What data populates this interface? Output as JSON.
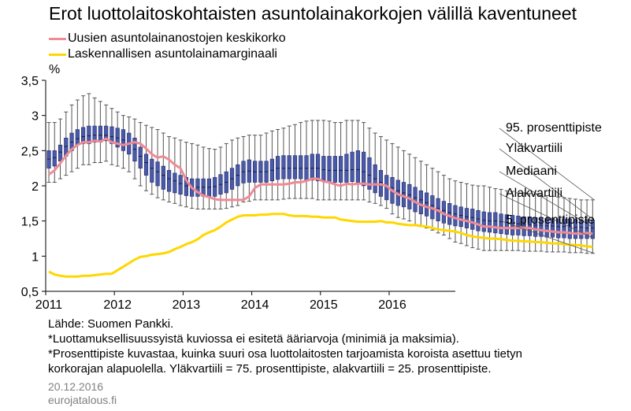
{
  "title": "Erot luottolaitoskohtaisten asuntolainakorkojen välillä kaventuneet",
  "unit_label": "%",
  "colors": {
    "median_line": "#f08a94",
    "margin_line": "#ffd700",
    "box": "#4a5aa8",
    "box_border": "#1f2a6b",
    "whisker": "#555555"
  },
  "notes": {
    "source": "Lähde: Suomen Pankki.",
    "note1": "*Luottamuksellisuussyistä kuviossa ei esitetä ääriarvoja (minimiä ja maksimia).",
    "note2": "*Prosenttipiste kuvastaa, kuinka suuri osa luottolaitosten tarjoamista koroista asettuu tietyn",
    "note3": "korkorajan alapuolella. Yläkvartiili = 75. prosenttipiste, alakvartiili = 25. prosenttipiste."
  },
  "date": "20.12.2016",
  "site": "eurojatalous.fi",
  "chart_data": {
    "type": "box_line",
    "x_ticks": [
      "2011",
      "2012",
      "2013",
      "2014",
      "2015",
      "2016"
    ],
    "y_ticks": [
      "0,5",
      "1",
      "1,5",
      "2",
      "2,5",
      "3",
      "3,5"
    ],
    "ylim": [
      0.5,
      3.5
    ],
    "x_start": "2011-01",
    "annotations": [
      "95. prosenttipiste",
      "Yläkvartiili",
      "Mediaani",
      "Alakvartiili",
      "5. prosenttipiste"
    ],
    "series": [
      {
        "name": "Uusien asuntolainanostojen keskikorko",
        "values": [
          2.16,
          2.22,
          2.32,
          2.43,
          2.52,
          2.58,
          2.62,
          2.62,
          2.64,
          2.63,
          2.67,
          2.62,
          2.6,
          2.58,
          2.6,
          2.62,
          2.6,
          2.53,
          2.45,
          2.4,
          2.42,
          2.37,
          2.3,
          2.25,
          2.08,
          1.97,
          1.91,
          1.86,
          1.84,
          1.81,
          1.8,
          1.8,
          1.8,
          1.8,
          1.8,
          1.85,
          1.97,
          2.02,
          2.02,
          2.02,
          2.02,
          2.02,
          2.03,
          2.05,
          2.05,
          2.07,
          2.1,
          2.1,
          2.06,
          2.05,
          2.02,
          2.0,
          2.03,
          2.02,
          2.03,
          2.03,
          2.02,
          2.02,
          2.02,
          2.0,
          1.93,
          1.88,
          1.85,
          1.82,
          1.77,
          1.73,
          1.7,
          1.68,
          1.65,
          1.6,
          1.57,
          1.54,
          1.52,
          1.5,
          1.48,
          1.45,
          1.42,
          1.42,
          1.41,
          1.4,
          1.4,
          1.4,
          1.4,
          1.4,
          1.4,
          1.38,
          1.37,
          1.36,
          1.35,
          1.34,
          1.34,
          1.33,
          1.32,
          1.32,
          1.33,
          1.32
        ]
      },
      {
        "name": "Laskennallisen asuntolainamarginaali",
        "values": [
          0.78,
          0.74,
          0.72,
          0.71,
          0.71,
          0.71,
          0.72,
          0.72,
          0.73,
          0.74,
          0.75,
          0.75,
          0.8,
          0.85,
          0.9,
          0.95,
          0.99,
          1.0,
          1.02,
          1.03,
          1.04,
          1.06,
          1.1,
          1.13,
          1.17,
          1.2,
          1.24,
          1.3,
          1.34,
          1.37,
          1.42,
          1.48,
          1.52,
          1.56,
          1.58,
          1.58,
          1.58,
          1.59,
          1.59,
          1.6,
          1.6,
          1.6,
          1.58,
          1.57,
          1.57,
          1.57,
          1.56,
          1.56,
          1.55,
          1.55,
          1.55,
          1.52,
          1.51,
          1.5,
          1.49,
          1.49,
          1.49,
          1.49,
          1.5,
          1.48,
          1.48,
          1.46,
          1.45,
          1.44,
          1.44,
          1.43,
          1.42,
          1.4,
          1.38,
          1.37,
          1.36,
          1.35,
          1.33,
          1.3,
          1.28,
          1.27,
          1.26,
          1.25,
          1.25,
          1.24,
          1.23,
          1.22,
          1.22,
          1.21,
          1.21,
          1.2,
          1.2,
          1.19,
          1.18,
          1.18,
          1.17,
          1.16,
          1.16,
          1.15,
          1.14,
          1.13
        ]
      }
    ],
    "boxes": {
      "p5": [
        2.05,
        2.05,
        2.1,
        2.15,
        2.2,
        2.25,
        2.3,
        2.3,
        2.33,
        2.33,
        2.35,
        2.3,
        2.28,
        2.25,
        2.2,
        2.1,
        2.0,
        1.93,
        1.88,
        1.83,
        1.8,
        1.77,
        1.75,
        1.72,
        1.7,
        1.68,
        1.67,
        1.67,
        1.67,
        1.67,
        1.67,
        1.68,
        1.7,
        1.72,
        1.77,
        1.78,
        1.8,
        1.8,
        1.8,
        1.8,
        1.8,
        1.81,
        1.82,
        1.82,
        1.82,
        1.82,
        1.82,
        1.8,
        1.8,
        1.8,
        1.8,
        1.8,
        1.8,
        1.8,
        1.8,
        1.8,
        1.77,
        1.75,
        1.72,
        1.68,
        1.6,
        1.55,
        1.53,
        1.5,
        1.45,
        1.42,
        1.4,
        1.37,
        1.33,
        1.3,
        1.25,
        1.2,
        1.18,
        1.15,
        1.12,
        1.1,
        1.08,
        1.08,
        1.08,
        1.08,
        1.08,
        1.08,
        1.08,
        1.07,
        1.07,
        1.07,
        1.07,
        1.06,
        1.06,
        1.06,
        1.06,
        1.05,
        1.05,
        1.05,
        1.04,
        1.04
      ],
      "q1": [
        2.25,
        2.28,
        2.35,
        2.42,
        2.5,
        2.58,
        2.6,
        2.6,
        2.62,
        2.62,
        2.64,
        2.6,
        2.55,
        2.5,
        2.45,
        2.35,
        2.25,
        2.15,
        2.05,
        2.0,
        1.95,
        1.92,
        1.9,
        1.88,
        1.86,
        1.85,
        1.85,
        1.85,
        1.85,
        1.85,
        1.88,
        1.9,
        1.95,
        2.0,
        2.04,
        2.05,
        2.05,
        2.05,
        2.05,
        2.07,
        2.09,
        2.1,
        2.1,
        2.1,
        2.1,
        2.08,
        2.08,
        2.07,
        2.06,
        2.05,
        2.05,
        2.05,
        2.05,
        2.06,
        2.05,
        2.0,
        1.95,
        1.9,
        1.85,
        1.8,
        1.75,
        1.72,
        1.7,
        1.67,
        1.63,
        1.6,
        1.57,
        1.53,
        1.5,
        1.47,
        1.45,
        1.43,
        1.42,
        1.4,
        1.38,
        1.36,
        1.35,
        1.34,
        1.33,
        1.32,
        1.31,
        1.3,
        1.3,
        1.29,
        1.29,
        1.28,
        1.28,
        1.27,
        1.27,
        1.26,
        1.26,
        1.25,
        1.25,
        1.25,
        1.25,
        1.25
      ],
      "med": [
        2.38,
        2.4,
        2.48,
        2.56,
        2.62,
        2.67,
        2.7,
        2.71,
        2.72,
        2.72,
        2.72,
        2.7,
        2.68,
        2.65,
        2.6,
        2.52,
        2.42,
        2.33,
        2.25,
        2.2,
        2.15,
        2.1,
        2.07,
        2.03,
        2.0,
        1.98,
        1.98,
        1.98,
        1.98,
        1.99,
        2.02,
        2.05,
        2.1,
        2.15,
        2.2,
        2.21,
        2.2,
        2.2,
        2.2,
        2.22,
        2.25,
        2.25,
        2.25,
        2.25,
        2.25,
        2.25,
        2.25,
        2.25,
        2.23,
        2.22,
        2.22,
        2.22,
        2.22,
        2.23,
        2.23,
        2.2,
        2.15,
        2.1,
        2.05,
        2.0,
        1.97,
        1.93,
        1.9,
        1.87,
        1.83,
        1.8,
        1.76,
        1.72,
        1.68,
        1.65,
        1.62,
        1.6,
        1.58,
        1.56,
        1.55,
        1.53,
        1.51,
        1.5,
        1.5,
        1.49,
        1.48,
        1.47,
        1.46,
        1.45,
        1.45,
        1.44,
        1.44,
        1.43,
        1.43,
        1.42,
        1.42,
        1.42,
        1.41,
        1.41,
        1.4,
        1.4
      ],
      "q3": [
        2.5,
        2.5,
        2.58,
        2.68,
        2.75,
        2.8,
        2.83,
        2.85,
        2.85,
        2.85,
        2.85,
        2.84,
        2.82,
        2.8,
        2.75,
        2.68,
        2.55,
        2.45,
        2.38,
        2.34,
        2.28,
        2.22,
        2.18,
        2.15,
        2.12,
        2.1,
        2.1,
        2.1,
        2.1,
        2.12,
        2.16,
        2.2,
        2.25,
        2.3,
        2.35,
        2.37,
        2.35,
        2.35,
        2.35,
        2.38,
        2.42,
        2.43,
        2.43,
        2.43,
        2.43,
        2.43,
        2.45,
        2.45,
        2.42,
        2.42,
        2.42,
        2.42,
        2.45,
        2.48,
        2.5,
        2.48,
        2.4,
        2.3,
        2.22,
        2.15,
        2.12,
        2.08,
        2.05,
        2.02,
        1.98,
        1.93,
        1.9,
        1.86,
        1.82,
        1.78,
        1.75,
        1.72,
        1.7,
        1.68,
        1.67,
        1.65,
        1.63,
        1.62,
        1.62,
        1.6,
        1.59,
        1.58,
        1.57,
        1.56,
        1.56,
        1.55,
        1.55,
        1.54,
        1.54,
        1.53,
        1.53,
        1.53,
        1.52,
        1.52,
        1.52,
        1.51
      ],
      "p95": [
        2.9,
        2.9,
        2.95,
        3.05,
        3.15,
        3.22,
        3.28,
        3.31,
        3.25,
        3.2,
        3.15,
        3.1,
        3.05,
        3.0,
        2.98,
        2.95,
        2.9,
        2.86,
        2.83,
        2.8,
        2.75,
        2.7,
        2.68,
        2.65,
        2.62,
        2.6,
        2.58,
        2.55,
        2.53,
        2.52,
        2.55,
        2.6,
        2.65,
        2.68,
        2.7,
        2.72,
        2.72,
        2.72,
        2.75,
        2.78,
        2.8,
        2.82,
        2.85,
        2.87,
        2.9,
        2.92,
        2.93,
        2.93,
        2.93,
        2.92,
        2.9,
        2.9,
        2.93,
        2.93,
        2.93,
        2.9,
        2.82,
        2.75,
        2.7,
        2.65,
        2.6,
        2.55,
        2.5,
        2.45,
        2.4,
        2.35,
        2.3,
        2.25,
        2.2,
        2.15,
        2.1,
        2.07,
        2.05,
        2.03,
        2.01,
        2.0,
        2.0,
        1.98,
        1.96,
        1.95,
        1.93,
        1.92,
        1.9,
        1.9,
        1.89,
        1.88,
        1.87,
        1.86,
        1.85,
        1.84,
        1.83,
        1.82,
        1.81,
        1.8,
        1.8,
        1.8
      ]
    }
  }
}
